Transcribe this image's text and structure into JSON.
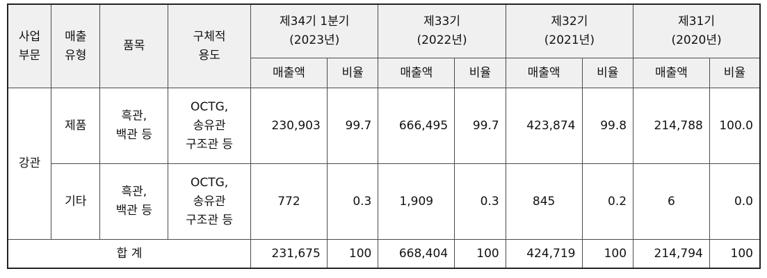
{
  "headers": {
    "segment": "사업\n부문",
    "sales_type": "매출\n유형",
    "item": "품목",
    "usage": "구체적\n용도",
    "periods": [
      "제34기 1분기\n(2023년)",
      "제33기\n(2022년)",
      "제32기\n(2021년)",
      "제31기\n(2020년)"
    ],
    "amount": "매출액",
    "ratio": "비율"
  },
  "segment_name": "강관",
  "rows": [
    {
      "type": "제품",
      "item": "흑관,\n백관 등",
      "usage": "OCTG,\n송유관\n구조관 등",
      "values": [
        {
          "amount": "230,903",
          "ratio": "99.7"
        },
        {
          "amount": "666,495",
          "ratio": "99.7"
        },
        {
          "amount": "423,874",
          "ratio": "99.8"
        },
        {
          "amount": "214,788",
          "ratio": "100.0"
        }
      ]
    },
    {
      "type": "기타",
      "item": "흑관,\n백관 등",
      "usage": "OCTG,\n송유관\n구조관 등",
      "values": [
        {
          "amount": "772",
          "ratio": "0.3"
        },
        {
          "amount": "1,909",
          "ratio": "0.3"
        },
        {
          "amount": "845",
          "ratio": "0.2"
        },
        {
          "amount": "6",
          "ratio": "0.0"
        }
      ]
    }
  ],
  "total": {
    "label": "합 계",
    "values": [
      {
        "amount": "231,675",
        "ratio": "100"
      },
      {
        "amount": "668,404",
        "ratio": "100"
      },
      {
        "amount": "424,719",
        "ratio": "100"
      },
      {
        "amount": "214,794",
        "ratio": "100"
      }
    ]
  }
}
